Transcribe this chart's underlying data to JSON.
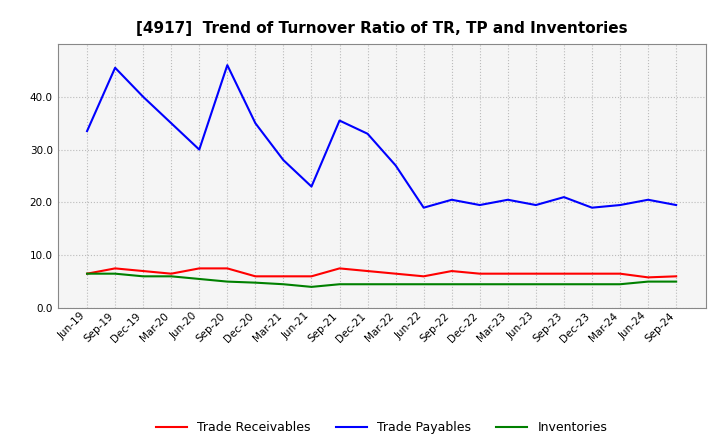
{
  "title": "[4917]  Trend of Turnover Ratio of TR, TP and Inventories",
  "x_labels": [
    "Jun-19",
    "Sep-19",
    "Dec-19",
    "Mar-20",
    "Jun-20",
    "Sep-20",
    "Dec-20",
    "Mar-21",
    "Jun-21",
    "Sep-21",
    "Dec-21",
    "Mar-22",
    "Jun-22",
    "Sep-22",
    "Dec-22",
    "Mar-23",
    "Jun-23",
    "Sep-23",
    "Dec-23",
    "Mar-24",
    "Jun-24",
    "Sep-24"
  ],
  "trade_receivables": [
    6.5,
    7.5,
    7.0,
    6.5,
    7.5,
    7.5,
    6.0,
    6.0,
    6.0,
    7.5,
    7.0,
    6.5,
    6.0,
    7.0,
    6.5,
    6.5,
    6.5,
    6.5,
    6.5,
    6.5,
    5.8,
    6.0
  ],
  "trade_payables": [
    33.5,
    45.5,
    40.0,
    35.0,
    30.0,
    46.0,
    35.0,
    28.0,
    23.0,
    35.5,
    33.0,
    27.0,
    19.0,
    20.5,
    19.5,
    20.5,
    19.5,
    21.0,
    19.0,
    19.5,
    20.5,
    19.5
  ],
  "inventories": [
    6.5,
    6.5,
    6.0,
    6.0,
    5.5,
    5.0,
    4.8,
    4.5,
    4.0,
    4.5,
    4.5,
    4.5,
    4.5,
    4.5,
    4.5,
    4.5,
    4.5,
    4.5,
    4.5,
    4.5,
    5.0,
    5.0
  ],
  "ylim": [
    0,
    50
  ],
  "yticks": [
    0.0,
    10.0,
    20.0,
    30.0,
    40.0
  ],
  "color_tr": "#ff0000",
  "color_tp": "#0000ff",
  "color_inv": "#008000",
  "bg_color": "#ffffff",
  "plot_bg_color": "#f5f5f5",
  "grid_color": "#bbbbbb",
  "title_fontsize": 11,
  "tick_fontsize": 7.5,
  "legend_labels": [
    "Trade Receivables",
    "Trade Payables",
    "Inventories"
  ]
}
